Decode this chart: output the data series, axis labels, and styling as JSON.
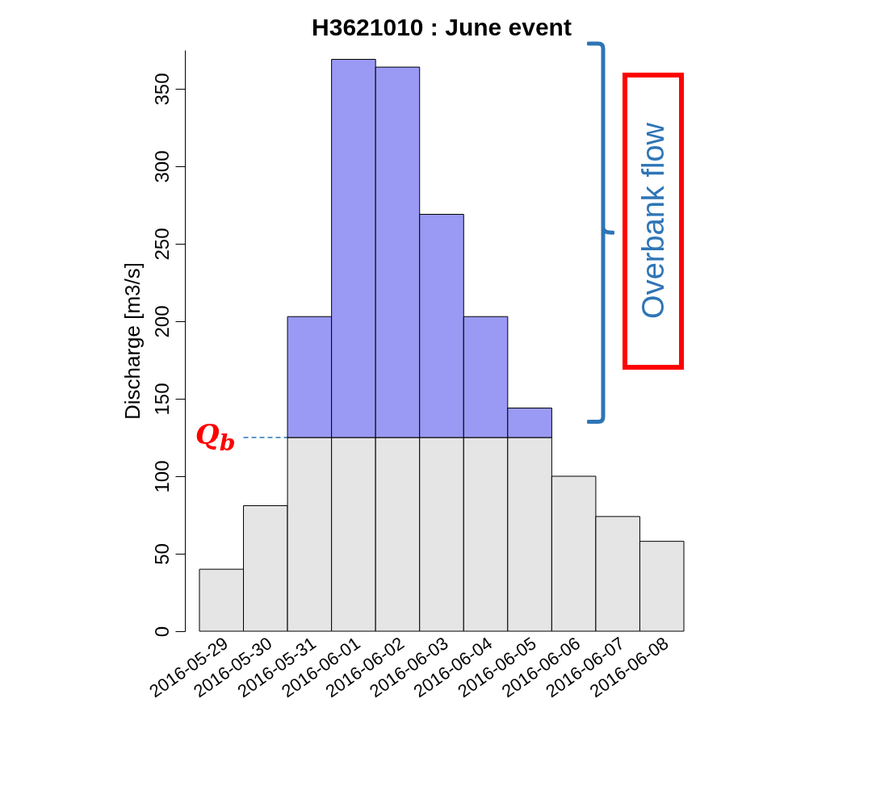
{
  "chart_data": {
    "type": "bar",
    "title": "H3621010 : June event",
    "ylabel": "Discharge [m3/s]",
    "categories": [
      "2016-05-29",
      "2016-05-30",
      "2016-05-31",
      "2016-06-01",
      "2016-06-02",
      "2016-06-03",
      "2016-06-04",
      "2016-06-05",
      "2016-06-06",
      "2016-06-07",
      "2016-06-08"
    ],
    "stacked": true,
    "series": [
      {
        "color": "#e5e5e5",
        "values": [
          40,
          81,
          125,
          125,
          125,
          125,
          125,
          125,
          100,
          74,
          58
        ]
      },
      {
        "color": "#9a9af5",
        "values": [
          null,
          null,
          78,
          244,
          239,
          144,
          78,
          19,
          null,
          null,
          null
        ]
      }
    ],
    "ylim": [
      0,
      375
    ],
    "yticks": [
      0,
      50,
      100,
      150,
      200,
      250,
      300,
      350
    ],
    "ref_lines": [
      {
        "axis": "y",
        "value": 125,
        "label": "Q$_{b}$",
        "color": "#2e75b6",
        "line_style": "dashed"
      }
    ],
    "annotations": [
      "Overbank flow"
    ],
    "grid": false
  }
}
